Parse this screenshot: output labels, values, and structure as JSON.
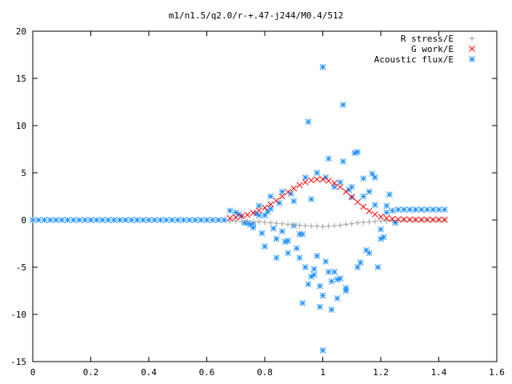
{
  "chart_data": {
    "type": "scatter",
    "title": "m1/n1.5/q2.0/r-+.47-j244/M0.4/512",
    "xlabel": "",
    "ylabel": "",
    "xlim": [
      0,
      1.6
    ],
    "ylim": [
      -15,
      20
    ],
    "grid": false,
    "legend_position": "top-right",
    "x_ticks": [
      {
        "value": 0,
        "label": "0"
      },
      {
        "value": 0.2,
        "label": "0.2"
      },
      {
        "value": 0.4,
        "label": "0.4"
      },
      {
        "value": 0.6,
        "label": "0.6"
      },
      {
        "value": 0.8,
        "label": "0.8"
      },
      {
        "value": 1.0,
        "label": "1"
      },
      {
        "value": 1.2,
        "label": "1.2"
      },
      {
        "value": 1.4,
        "label": "1.4"
      },
      {
        "value": 1.6,
        "label": "1.6"
      }
    ],
    "y_ticks": [
      {
        "value": -15,
        "label": "-15"
      },
      {
        "value": -10,
        "label": "-10"
      },
      {
        "value": -5,
        "label": "-5"
      },
      {
        "value": 0,
        "label": "0"
      },
      {
        "value": 5,
        "label": "5"
      },
      {
        "value": 10,
        "label": "10"
      },
      {
        "value": 15,
        "label": "15"
      },
      {
        "value": 20,
        "label": "20"
      }
    ],
    "series": [
      {
        "name": "R stress/E",
        "marker": "plus",
        "color": "#a0a0a0",
        "x": [
          0.68,
          0.7,
          0.72,
          0.74,
          0.76,
          0.78,
          0.8,
          0.82,
          0.84,
          0.86,
          0.88,
          0.9,
          0.92,
          0.94,
          0.96,
          0.98,
          1.0,
          1.02,
          1.04,
          1.06,
          1.08,
          1.1,
          1.12,
          1.14,
          1.16,
          1.18,
          1.2,
          1.22,
          1.24,
          1.26,
          1.28,
          1.3,
          1.32,
          1.34,
          1.36,
          1.38,
          1.4,
          1.42
        ],
        "y": [
          -0.1,
          -0.1,
          -0.15,
          -0.15,
          -0.2,
          -0.2,
          -0.25,
          -0.3,
          -0.35,
          -0.4,
          -0.45,
          -0.5,
          -0.55,
          -0.6,
          -0.65,
          -0.65,
          -0.7,
          -0.65,
          -0.6,
          -0.55,
          -0.45,
          -0.4,
          -0.3,
          -0.25,
          -0.2,
          -0.15,
          -0.1,
          -0.1,
          -0.05,
          -0.05,
          0,
          0,
          0,
          0,
          0,
          0,
          0,
          0
        ]
      },
      {
        "name": "G work/E",
        "marker": "cross",
        "color": "#ff0000",
        "x": [
          0.68,
          0.7,
          0.72,
          0.74,
          0.76,
          0.78,
          0.8,
          0.82,
          0.84,
          0.86,
          0.88,
          0.9,
          0.92,
          0.94,
          0.96,
          0.98,
          1.0,
          1.02,
          1.04,
          1.06,
          1.08,
          1.1,
          1.12,
          1.14,
          1.16,
          1.18,
          1.2,
          1.22,
          1.24,
          1.26,
          1.28,
          1.3,
          1.32,
          1.34,
          1.36,
          1.38,
          1.4,
          1.42
        ],
        "y": [
          0.2,
          0.3,
          0.4,
          0.55,
          0.75,
          1.0,
          1.3,
          1.65,
          2.05,
          2.5,
          2.95,
          3.35,
          3.7,
          4.0,
          4.2,
          4.3,
          4.3,
          4.15,
          3.9,
          3.5,
          3.0,
          2.45,
          1.9,
          1.4,
          0.95,
          0.6,
          0.35,
          0.2,
          0.12,
          0.08,
          0.05,
          0.04,
          0.03,
          0.03,
          0.03,
          0.03,
          0.03,
          0.03
        ]
      },
      {
        "name": "Acoustic flux/E",
        "marker": "star",
        "color": "#1e90ff",
        "x": [
          0.0,
          0.02,
          0.04,
          0.06,
          0.08,
          0.1,
          0.12,
          0.14,
          0.16,
          0.18,
          0.2,
          0.22,
          0.24,
          0.26,
          0.28,
          0.3,
          0.32,
          0.34,
          0.36,
          0.38,
          0.4,
          0.42,
          0.44,
          0.46,
          0.48,
          0.5,
          0.52,
          0.54,
          0.56,
          0.58,
          0.6,
          0.62,
          0.64,
          0.66,
          0.68,
          0.7,
          0.72,
          0.74,
          0.76,
          0.78,
          0.8,
          0.82,
          0.84,
          0.86,
          0.88,
          0.9,
          0.92,
          0.94,
          0.96,
          0.98,
          1.0,
          1.02,
          1.04,
          1.06,
          1.08,
          1.1,
          1.12,
          1.14,
          1.16,
          1.18,
          1.2,
          1.22,
          1.24,
          1.26,
          1.28,
          1.3,
          1.32,
          1.34,
          1.36,
          1.38,
          1.4,
          1.42,
          0.95,
          0.97,
          0.99,
          1.0,
          1.01,
          1.03,
          1.05,
          1.07,
          1.09,
          0.93,
          0.91,
          0.89,
          0.87,
          0.85,
          0.83,
          0.81,
          0.79,
          0.77,
          0.75,
          0.73,
          0.71,
          1.11,
          1.13,
          1.15,
          1.17,
          1.19,
          1.21,
          1.23,
          1.25,
          0.92,
          0.94,
          0.96,
          0.98,
          1.02,
          1.04,
          1.06,
          1.08,
          1.1,
          1.12,
          1.14,
          1.16,
          1.18,
          0.9,
          0.88,
          0.86,
          0.84,
          0.82,
          0.8,
          0.78,
          0.76,
          1.2,
          1.22,
          1.0,
          1.07,
          1.03,
          0.97,
          0.99,
          1.01,
          1.05,
          0.93,
          0.95
        ],
        "y": [
          0,
          0,
          0,
          0,
          0,
          0,
          0,
          0,
          0,
          0,
          0,
          0,
          0,
          0,
          0,
          0,
          0,
          0,
          0,
          0,
          0,
          0,
          0,
          0,
          0,
          0,
          0,
          0,
          0,
          0,
          0,
          0,
          0,
          0,
          1.0,
          0.8,
          0.4,
          -0.3,
          -0.8,
          1.5,
          0.5,
          2.5,
          -2.0,
          3.0,
          -3.5,
          2.0,
          -4.0,
          4.5,
          -6.0,
          5.0,
          -8.0,
          6.5,
          -5.5,
          4.0,
          -7.5,
          3.5,
          -5.0,
          2.5,
          -3.5,
          4.5,
          -2.0,
          1.5,
          1.0,
          1.1,
          1.1,
          1.1,
          1.1,
          1.1,
          1.1,
          1.1,
          1.1,
          1.1,
          10.4,
          -5.2,
          -7.0,
          16.2,
          4.5,
          -6.5,
          -8.3,
          12.2,
          3.2,
          -1.5,
          -3.0,
          2.8,
          -2.3,
          1.8,
          -0.9,
          0.9,
          -1.4,
          0.7,
          -0.5,
          -0.3,
          0.6,
          7.1,
          -4.5,
          -3.2,
          4.9,
          -5.0,
          -1.8,
          2.7,
          -0.3,
          -1.5,
          -5.0,
          2.2,
          -3.8,
          -5.5,
          3.5,
          -6.2,
          -7.2,
          2.4,
          7.2,
          4.4,
          3.0,
          1.6,
          -0.6,
          -2.2,
          -1.2,
          -4.0,
          1.2,
          -2.8,
          0.5,
          -0.4,
          -1.0,
          0.8,
          -13.8,
          6.2,
          -9.5,
          -5.8,
          -9.2,
          -4.4,
          -6.3,
          -8.8,
          -6.8
        ]
      }
    ]
  }
}
